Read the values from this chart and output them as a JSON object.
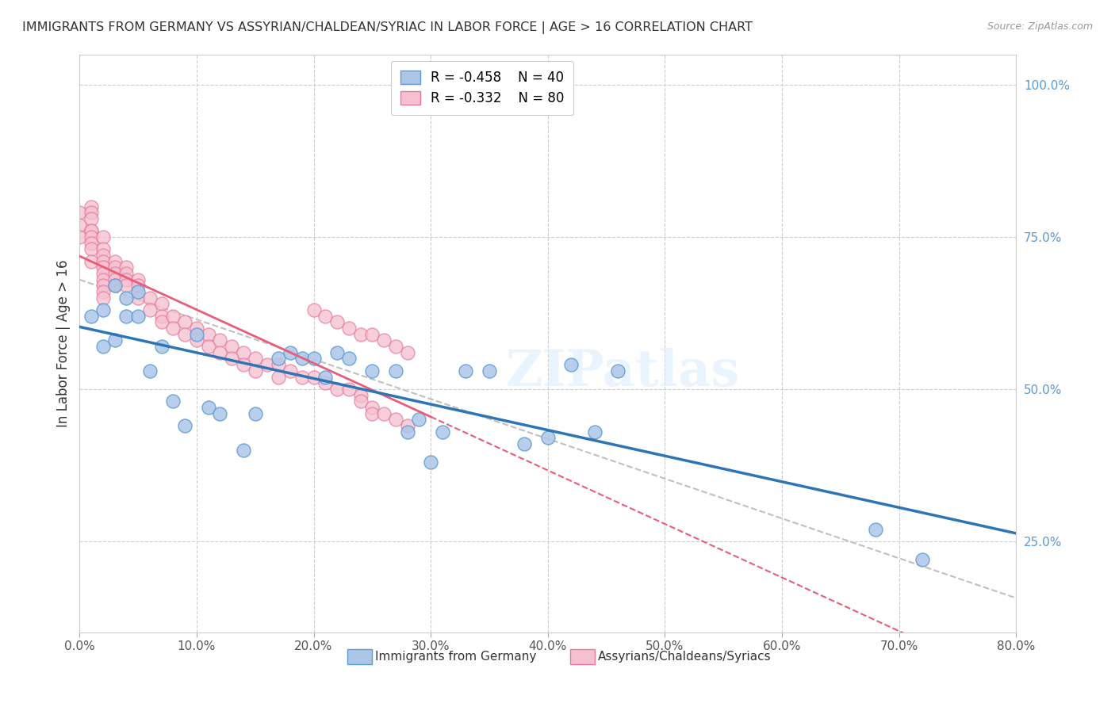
{
  "title": "IMMIGRANTS FROM GERMANY VS ASSYRIAN/CHALDEAN/SYRIAC IN LABOR FORCE | AGE > 16 CORRELATION CHART",
  "source": "Source: ZipAtlas.com",
  "ylabel": "In Labor Force | Age > 16",
  "xlim": [
    0.0,
    0.8
  ],
  "ylim": [
    0.1,
    1.05
  ],
  "xticks": [
    0.0,
    0.1,
    0.2,
    0.3,
    0.4,
    0.5,
    0.6,
    0.7,
    0.8
  ],
  "yticks_right": [
    0.25,
    0.5,
    0.75,
    1.0
  ],
  "ytick_labels_right": [
    "25.0%",
    "50.0%",
    "75.0%",
    "100.0%"
  ],
  "xtick_labels": [
    "0.0%",
    "10.0%",
    "20.0%",
    "30.0%",
    "40.0%",
    "50.0%",
    "60.0%",
    "70.0%",
    "80.0%"
  ],
  "legend_blue_r": "R = -0.458",
  "legend_blue_n": "N = 40",
  "legend_pink_r": "R = -0.332",
  "legend_pink_n": "N = 80",
  "blue_color": "#adc6e8",
  "blue_edge": "#5b9bd5",
  "pink_color": "#f5c0d0",
  "pink_edge": "#e8799a",
  "blue_line_color": "#2e75b6",
  "pink_line_color": "#e85d7a",
  "gray_dash_color": "#c0c0c0",
  "watermark": "ZIPatlas",
  "blue_scatter_x": [
    0.01,
    0.02,
    0.02,
    0.03,
    0.03,
    0.04,
    0.04,
    0.05,
    0.05,
    0.06,
    0.07,
    0.08,
    0.09,
    0.1,
    0.11,
    0.12,
    0.14,
    0.15,
    0.17,
    0.18,
    0.19,
    0.2,
    0.21,
    0.22,
    0.23,
    0.25,
    0.27,
    0.28,
    0.29,
    0.3,
    0.31,
    0.33,
    0.35,
    0.38,
    0.4,
    0.42,
    0.44,
    0.46,
    0.68,
    0.72
  ],
  "blue_scatter_y": [
    0.62,
    0.63,
    0.57,
    0.67,
    0.58,
    0.65,
    0.62,
    0.66,
    0.62,
    0.53,
    0.57,
    0.48,
    0.44,
    0.59,
    0.47,
    0.46,
    0.4,
    0.46,
    0.55,
    0.56,
    0.55,
    0.55,
    0.52,
    0.56,
    0.55,
    0.53,
    0.53,
    0.43,
    0.45,
    0.38,
    0.43,
    0.53,
    0.53,
    0.41,
    0.42,
    0.54,
    0.43,
    0.53,
    0.27,
    0.22
  ],
  "pink_scatter_x": [
    0.0,
    0.0,
    0.0,
    0.01,
    0.01,
    0.01,
    0.01,
    0.01,
    0.01,
    0.01,
    0.01,
    0.01,
    0.02,
    0.02,
    0.02,
    0.02,
    0.02,
    0.02,
    0.02,
    0.02,
    0.02,
    0.02,
    0.03,
    0.03,
    0.03,
    0.03,
    0.03,
    0.04,
    0.04,
    0.04,
    0.04,
    0.05,
    0.05,
    0.05,
    0.06,
    0.06,
    0.07,
    0.07,
    0.07,
    0.08,
    0.08,
    0.09,
    0.09,
    0.1,
    0.1,
    0.11,
    0.11,
    0.12,
    0.12,
    0.13,
    0.13,
    0.14,
    0.14,
    0.15,
    0.15,
    0.16,
    0.17,
    0.17,
    0.18,
    0.19,
    0.2,
    0.2,
    0.21,
    0.21,
    0.22,
    0.22,
    0.23,
    0.23,
    0.24,
    0.24,
    0.24,
    0.25,
    0.25,
    0.25,
    0.26,
    0.26,
    0.27,
    0.27,
    0.28,
    0.28
  ],
  "pink_scatter_y": [
    0.79,
    0.77,
    0.75,
    0.8,
    0.79,
    0.78,
    0.76,
    0.76,
    0.75,
    0.74,
    0.73,
    0.71,
    0.75,
    0.73,
    0.72,
    0.71,
    0.7,
    0.69,
    0.68,
    0.67,
    0.66,
    0.65,
    0.71,
    0.7,
    0.69,
    0.68,
    0.67,
    0.7,
    0.69,
    0.68,
    0.67,
    0.68,
    0.67,
    0.65,
    0.65,
    0.63,
    0.64,
    0.62,
    0.61,
    0.62,
    0.6,
    0.61,
    0.59,
    0.6,
    0.58,
    0.59,
    0.57,
    0.58,
    0.56,
    0.57,
    0.55,
    0.56,
    0.54,
    0.55,
    0.53,
    0.54,
    0.54,
    0.52,
    0.53,
    0.52,
    0.63,
    0.52,
    0.62,
    0.51,
    0.61,
    0.5,
    0.6,
    0.5,
    0.59,
    0.49,
    0.48,
    0.59,
    0.47,
    0.46,
    0.58,
    0.46,
    0.57,
    0.45,
    0.56,
    0.44
  ]
}
